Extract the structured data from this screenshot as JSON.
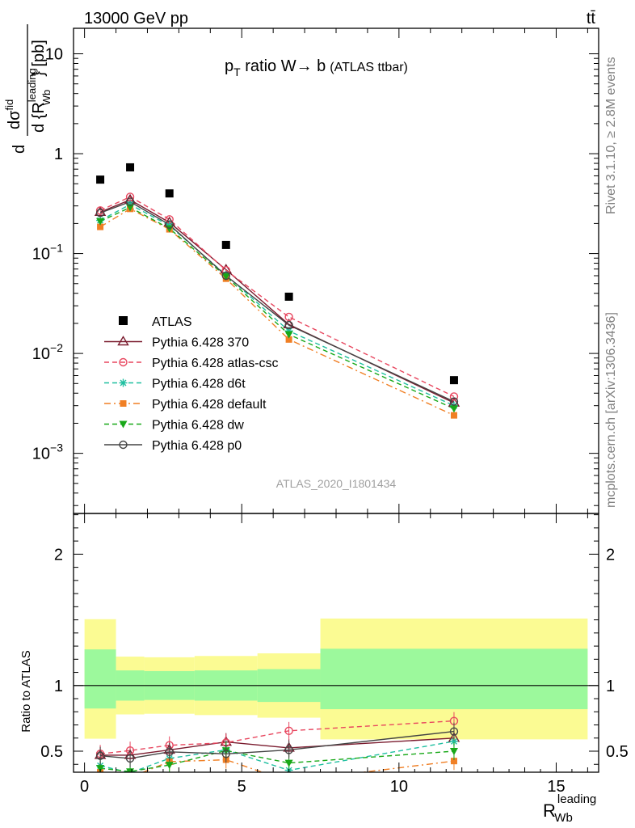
{
  "header": {
    "energy_label": "13000 GeV pp",
    "process_label": "tt̄"
  },
  "side_labels": {
    "rivet": "Rivet 3.1.10, ≥ 2.8M events",
    "source": "mcplots.cern.ch [arXiv:1306.3436]"
  },
  "chart_data": [
    {
      "type": "scatter",
      "title_parts": [
        "p",
        "T",
        " ratio W→ b",
        "(ATLAS ttbar)"
      ],
      "ylabel_parts": [
        "d",
        "dσ",
        "fid",
        "d {R",
        "leading",
        "Wb",
        "} [pb]"
      ],
      "analysis_tag": "ATLAS_2020_I1801434",
      "y_scale": "log",
      "xlim": [
        -0.35,
        16.35
      ],
      "ylim": [
        0.00025,
        18
      ],
      "y_ticks": [
        {
          "value": 10,
          "label_base": "10",
          "label_exp": ""
        },
        {
          "value": 1,
          "label_base": "1",
          "label_exp": ""
        },
        {
          "value": 0.1,
          "label_base": "10",
          "label_exp": "−1"
        },
        {
          "value": 0.01,
          "label_base": "10",
          "label_exp": "−2"
        },
        {
          "value": 0.001,
          "label_base": "10",
          "label_exp": "−3"
        }
      ],
      "legend_position": "lower-left",
      "data": {
        "name": "ATLAS",
        "x": [
          0.5,
          1.45,
          2.7,
          4.5,
          6.5,
          11.75
        ],
        "y": [
          0.55,
          0.73,
          0.4,
          0.122,
          0.037,
          0.0054
        ],
        "xerr": [
          0.5,
          0.45,
          0.8,
          1.0,
          1.0,
          4.25
        ]
      },
      "series": [
        {
          "name": "Pythia 6.428 370",
          "color": "#7a1b2e",
          "dash": "solid",
          "marker": "triangle-open",
          "x": [
            0.5,
            1.45,
            2.7,
            4.5,
            6.5,
            11.75
          ],
          "y": [
            0.26,
            0.345,
            0.205,
            0.069,
            0.0195,
            0.0032
          ]
        },
        {
          "name": "Pythia 6.428 atlas-csc",
          "color": "#e8475f",
          "dash": "dashed",
          "marker": "circle-open",
          "x": [
            0.5,
            1.45,
            2.7,
            4.5,
            6.5,
            11.75
          ],
          "y": [
            0.27,
            0.37,
            0.22,
            0.068,
            0.0232,
            0.0037
          ]
        },
        {
          "name": "Pythia 6.428 d6t",
          "color": "#1fbfa0",
          "dash": "dashed",
          "marker": "asterisk",
          "x": [
            0.5,
            1.45,
            2.7,
            4.5,
            6.5,
            11.75
          ],
          "y": [
            0.215,
            0.31,
            0.19,
            0.061,
            0.0168,
            0.003
          ]
        },
        {
          "name": "Pythia 6.428 default",
          "color": "#f07f24",
          "dash": "dashdot",
          "marker": "square-filled",
          "x": [
            0.5,
            1.45,
            2.7,
            4.5,
            6.5,
            11.75
          ],
          "y": [
            0.185,
            0.28,
            0.175,
            0.056,
            0.0138,
            0.0024
          ]
        },
        {
          "name": "Pythia 6.428 dw",
          "color": "#18a818",
          "dash": "dashed",
          "marker": "triangle-down-filled",
          "x": [
            0.5,
            1.45,
            2.7,
            4.5,
            6.5,
            11.75
          ],
          "y": [
            0.21,
            0.29,
            0.178,
            0.059,
            0.0155,
            0.0028
          ]
        },
        {
          "name": "Pythia 6.428 p0",
          "color": "#444444",
          "dash": "solid",
          "marker": "circle-open",
          "x": [
            0.5,
            1.45,
            2.7,
            4.5,
            6.5,
            11.75
          ],
          "y": [
            0.255,
            0.33,
            0.195,
            0.06,
            0.0192,
            0.0033
          ]
        }
      ]
    },
    {
      "type": "line",
      "ylabel": "Ratio to ATLAS",
      "xlabel_parts": [
        "R",
        "leading",
        "Wb"
      ],
      "y_scale": "linear",
      "xlim": [
        -0.35,
        16.35
      ],
      "ylim": [
        0.34,
        2.31
      ],
      "x_ticks": [
        0,
        5,
        10,
        15
      ],
      "y_ticks": [
        0.5,
        1,
        2
      ],
      "reference_line": 1,
      "bands": [
        {
          "x": [
            0,
            1
          ],
          "inner": [
            0.825,
            1.275
          ],
          "outer": [
            0.595,
            1.505
          ]
        },
        {
          "x": [
            1,
            1.9
          ],
          "inner": [
            0.885,
            1.115
          ],
          "outer": [
            0.78,
            1.22
          ]
        },
        {
          "x": [
            1.9,
            3.5
          ],
          "inner": [
            0.89,
            1.11
          ],
          "outer": [
            0.785,
            1.215
          ]
        },
        {
          "x": [
            3.5,
            5.5
          ],
          "inner": [
            0.885,
            1.115
          ],
          "outer": [
            0.775,
            1.225
          ]
        },
        {
          "x": [
            5.5,
            7.5
          ],
          "inner": [
            0.875,
            1.125
          ],
          "outer": [
            0.755,
            1.245
          ]
        },
        {
          "x": [
            7.5,
            16
          ],
          "inner": [
            0.82,
            1.28
          ],
          "outer": [
            0.59,
            1.51
          ]
        }
      ],
      "band_colors": {
        "inner": "#9cf99c",
        "outer": "#fbfb93"
      },
      "series": [
        {
          "name": "Pythia 6.428 370",
          "x": [
            0.5,
            1.45,
            2.7,
            4.5,
            6.5,
            11.75
          ],
          "y": [
            0.47,
            0.47,
            0.51,
            0.57,
            0.525,
            0.6
          ]
        },
        {
          "name": "Pythia 6.428 atlas-csc",
          "x": [
            0.5,
            1.45,
            2.7,
            4.5,
            6.5,
            11.75
          ],
          "y": [
            0.48,
            0.505,
            0.545,
            0.565,
            0.655,
            0.73
          ]
        },
        {
          "name": "Pythia 6.428 d6t",
          "x": [
            0.5,
            1.45,
            2.7,
            4.5,
            6.5,
            11.75
          ],
          "y": [
            0.39,
            0.335,
            0.445,
            0.51,
            0.355,
            0.575
          ]
        },
        {
          "name": "Pythia 6.428 default",
          "x": [
            0.5,
            1.45,
            2.7,
            4.5,
            6.5,
            11.75
          ],
          "y": [
            0.34,
            0.3,
            0.42,
            0.435,
            0.27,
            0.425
          ]
        },
        {
          "name": "Pythia 6.428 dw",
          "x": [
            0.5,
            1.45,
            2.7,
            4.5,
            6.5,
            11.75
          ],
          "y": [
            0.37,
            0.345,
            0.395,
            0.505,
            0.41,
            0.5
          ]
        },
        {
          "name": "Pythia 6.428 p0",
          "x": [
            0.5,
            1.45,
            2.7,
            4.5,
            6.5,
            11.75
          ],
          "y": [
            0.465,
            0.445,
            0.495,
            0.48,
            0.51,
            0.65
          ]
        }
      ]
    }
  ]
}
